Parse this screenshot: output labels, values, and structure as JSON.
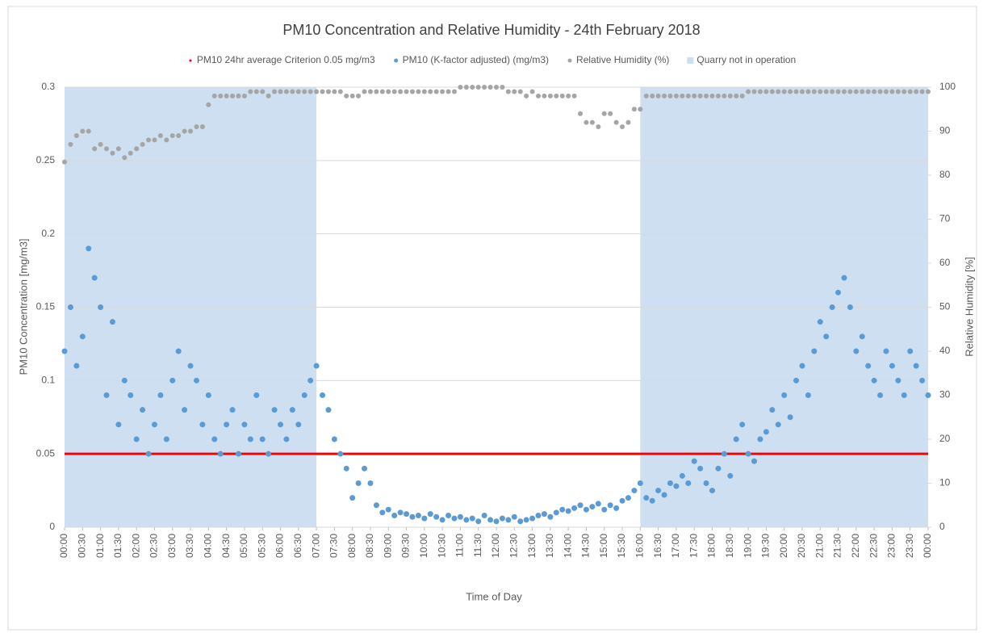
{
  "chart_data": {
    "type": "scatter",
    "title": "PM10 Concentration and Relative Humidity - 24th February 2018",
    "x_label": "Time of Day",
    "y_label": "PM10 Concentration [mg/m3]",
    "y2_label": "Relative Humidity [%]",
    "grid": true,
    "legend": "top",
    "xlim": [
      0,
      1440
    ],
    "xticks": [
      {
        "value": 0,
        "label": "00:00"
      },
      {
        "value": 30,
        "label": "00:30"
      },
      {
        "value": 60,
        "label": "01:00"
      },
      {
        "value": 90,
        "label": "01:30"
      },
      {
        "value": 120,
        "label": "02:00"
      },
      {
        "value": 150,
        "label": "02:30"
      },
      {
        "value": 180,
        "label": "03:00"
      },
      {
        "value": 210,
        "label": "03:30"
      },
      {
        "value": 240,
        "label": "04:00"
      },
      {
        "value": 270,
        "label": "04:30"
      },
      {
        "value": 300,
        "label": "05:00"
      },
      {
        "value": 330,
        "label": "05:30"
      },
      {
        "value": 360,
        "label": "06:00"
      },
      {
        "value": 390,
        "label": "06:30"
      },
      {
        "value": 420,
        "label": "07:00"
      },
      {
        "value": 450,
        "label": "07:30"
      },
      {
        "value": 480,
        "label": "08:00"
      },
      {
        "value": 510,
        "label": "08:30"
      },
      {
        "value": 540,
        "label": "09:00"
      },
      {
        "value": 570,
        "label": "09:30"
      },
      {
        "value": 600,
        "label": "10:00"
      },
      {
        "value": 630,
        "label": "10:30"
      },
      {
        "value": 660,
        "label": "11:00"
      },
      {
        "value": 690,
        "label": "11:30"
      },
      {
        "value": 720,
        "label": "12:00"
      },
      {
        "value": 750,
        "label": "12:30"
      },
      {
        "value": 780,
        "label": "13:00"
      },
      {
        "value": 810,
        "label": "13:30"
      },
      {
        "value": 840,
        "label": "14:00"
      },
      {
        "value": 870,
        "label": "14:30"
      },
      {
        "value": 900,
        "label": "15:00"
      },
      {
        "value": 930,
        "label": "15:30"
      },
      {
        "value": 960,
        "label": "16:00"
      },
      {
        "value": 990,
        "label": "16:30"
      },
      {
        "value": 1020,
        "label": "17:00"
      },
      {
        "value": 1050,
        "label": "17:30"
      },
      {
        "value": 1080,
        "label": "18:00"
      },
      {
        "value": 1110,
        "label": "18:30"
      },
      {
        "value": 1140,
        "label": "19:00"
      },
      {
        "value": 1170,
        "label": "19:30"
      },
      {
        "value": 1200,
        "label": "20:00"
      },
      {
        "value": 1230,
        "label": "20:30"
      },
      {
        "value": 1260,
        "label": "21:00"
      },
      {
        "value": 1290,
        "label": "21:30"
      },
      {
        "value": 1320,
        "label": "22:00"
      },
      {
        "value": 1350,
        "label": "22:30"
      },
      {
        "value": 1380,
        "label": "23:00"
      },
      {
        "value": 1410,
        "label": "23:30"
      },
      {
        "value": 1440,
        "label": "00:00"
      }
    ],
    "ylim": [
      0,
      0.3
    ],
    "yticks": [
      0,
      0.05,
      0.1,
      0.15,
      0.2,
      0.25,
      0.3
    ],
    "y2lim": [
      0,
      100
    ],
    "y2ticks": [
      0,
      10,
      20,
      30,
      40,
      50,
      60,
      70,
      80,
      90,
      100
    ],
    "x": [
      0,
      10,
      20,
      30,
      40,
      50,
      60,
      70,
      80,
      90,
      100,
      110,
      120,
      130,
      140,
      150,
      160,
      170,
      180,
      190,
      200,
      210,
      220,
      230,
      240,
      250,
      260,
      270,
      280,
      290,
      300,
      310,
      320,
      330,
      340,
      350,
      360,
      370,
      380,
      390,
      400,
      410,
      420,
      430,
      440,
      450,
      460,
      470,
      480,
      490,
      500,
      510,
      520,
      530,
      540,
      550,
      560,
      570,
      580,
      590,
      600,
      610,
      620,
      630,
      640,
      650,
      660,
      670,
      680,
      690,
      700,
      710,
      720,
      730,
      740,
      750,
      760,
      770,
      780,
      790,
      800,
      810,
      820,
      830,
      840,
      850,
      860,
      870,
      880,
      890,
      900,
      910,
      920,
      930,
      940,
      950,
      960,
      970,
      980,
      990,
      1000,
      1010,
      1020,
      1030,
      1040,
      1050,
      1060,
      1070,
      1080,
      1090,
      1100,
      1110,
      1120,
      1130,
      1140,
      1150,
      1160,
      1170,
      1180,
      1190,
      1200,
      1210,
      1220,
      1230,
      1240,
      1250,
      1260,
      1270,
      1280,
      1290,
      1300,
      1310,
      1320,
      1330,
      1340,
      1350,
      1360,
      1370,
      1380,
      1390,
      1400,
      1410,
      1420,
      1430,
      1440
    ],
    "series": [
      {
        "name": "PM10 24hr average Criterion 0.05 mg/m3",
        "color": "#ff0000",
        "value": 0.05
      },
      {
        "name": "PM10 (K-factor adjusted) (mg/m3)",
        "color": "#5b9bd5",
        "values": [
          0.12,
          0.15,
          0.11,
          0.13,
          0.19,
          0.17,
          0.15,
          0.09,
          0.14,
          0.07,
          0.1,
          0.09,
          0.06,
          0.08,
          0.05,
          0.07,
          0.09,
          0.06,
          0.1,
          0.12,
          0.08,
          0.11,
          0.1,
          0.07,
          0.09,
          0.06,
          0.05,
          0.07,
          0.08,
          0.05,
          0.07,
          0.06,
          0.09,
          0.06,
          0.05,
          0.08,
          0.07,
          0.06,
          0.08,
          0.07,
          0.09,
          0.1,
          0.11,
          0.09,
          0.08,
          0.06,
          0.05,
          0.04,
          0.02,
          0.03,
          0.04,
          0.03,
          0.015,
          0.01,
          0.012,
          0.008,
          0.01,
          0.009,
          0.007,
          0.008,
          0.006,
          0.009,
          0.007,
          0.005,
          0.008,
          0.006,
          0.007,
          0.005,
          0.006,
          0.004,
          0.008,
          0.005,
          0.004,
          0.006,
          0.005,
          0.007,
          0.004,
          0.005,
          0.006,
          0.008,
          0.009,
          0.007,
          0.01,
          0.012,
          0.011,
          0.013,
          0.015,
          0.012,
          0.014,
          0.016,
          0.012,
          0.015,
          0.013,
          0.018,
          0.02,
          0.025,
          0.03,
          0.02,
          0.018,
          0.025,
          0.022,
          0.03,
          0.028,
          0.035,
          0.03,
          0.045,
          0.04,
          0.03,
          0.025,
          0.04,
          0.05,
          0.035,
          0.06,
          0.07,
          0.05,
          0.045,
          0.06,
          0.065,
          0.08,
          0.07,
          0.09,
          0.075,
          0.1,
          0.11,
          0.09,
          0.12,
          0.14,
          0.13,
          0.15,
          0.16,
          0.17,
          0.15,
          0.12,
          0.13,
          0.11,
          0.1,
          0.09,
          0.12,
          0.11,
          0.1,
          0.09,
          0.12,
          0.11,
          0.1,
          0.09
        ]
      },
      {
        "name": "Relative Humidity (%)",
        "color": "#a5a5a5",
        "axis": "y2",
        "values": [
          83,
          87,
          89,
          90,
          90,
          86,
          87,
          86,
          85,
          86,
          84,
          85,
          86,
          87,
          88,
          88,
          89,
          88,
          89,
          89,
          90,
          90,
          91,
          91,
          96,
          98,
          98,
          98,
          98,
          98,
          98,
          99,
          99,
          99,
          98,
          99,
          99,
          99,
          99,
          99,
          99,
          99,
          99,
          99,
          99,
          99,
          99,
          98,
          98,
          98,
          99,
          99,
          99,
          99,
          99,
          99,
          99,
          99,
          99,
          99,
          99,
          99,
          99,
          99,
          99,
          99,
          100,
          100,
          100,
          100,
          100,
          100,
          100,
          100,
          99,
          99,
          99,
          98,
          99,
          98,
          98,
          98,
          98,
          98,
          98,
          98,
          94,
          92,
          92,
          91,
          94,
          94,
          92,
          91,
          92,
          95,
          95,
          98,
          98,
          98,
          98,
          98,
          98,
          98,
          98,
          98,
          98,
          98,
          98,
          98,
          98,
          98,
          98,
          98,
          99,
          99,
          99,
          99,
          99,
          99,
          99,
          99,
          99,
          99,
          99,
          99,
          99,
          99,
          99,
          99,
          99,
          99,
          99,
          99,
          99,
          99,
          99,
          99,
          99,
          99,
          99,
          99,
          99,
          99,
          99
        ]
      },
      {
        "name": "Quarry not in operation",
        "color": "#cddff1",
        "ranges": [
          [
            0,
            420
          ],
          [
            960,
            1440
          ]
        ]
      }
    ]
  }
}
